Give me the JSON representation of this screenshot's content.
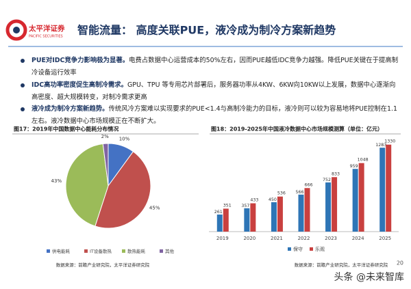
{
  "header": {
    "logo_text": "太平洋证券",
    "logo_subtext": "PACIFIC SECURITIES",
    "title": "智能流量：  高度关联PUE，液冷成为制冷方案新趋势"
  },
  "bullets": [
    {
      "lead": "PUE对IDC竞争力影响极为显著。",
      "text": "电费占数据中心运营成本的50%左右，因而PUE越低IDC竞争力越强。降低PUE关键在于提高制冷设备运行效率"
    },
    {
      "lead": "IDC高功率密度促生高制冷需求。",
      "text": "GPU、TPU 等专用芯片部署后，服务器功率从4KW、6KW向10KW以上发展，数据中心逐渐向高密度、超大规模转变，对制冷需求更高"
    },
    {
      "lead": "液冷成为制冷方案新趋势。",
      "text": "传统风冷方案难以实现要求的PUE<1.4与高制冷能力的目标，液冷则可以较为容易地将PUE控制在1.1左右。液冷数据中心市场规模正在不断扩大。"
    }
  ],
  "chart_data": [
    {
      "type": "pie",
      "title": "图17：2019年中国数据中心能耗分布情况",
      "categories": [
        "供电能耗",
        "IT设备散热",
        "散热能耗",
        "其他"
      ],
      "values": [
        10,
        45,
        43,
        2
      ],
      "value_labels": [
        "10%",
        "45%",
        "43%",
        "2%"
      ],
      "colors": [
        "#4472c4",
        "#c0504d",
        "#9bbb59",
        "#8064a2"
      ],
      "legend": "bottom",
      "source": "数据来源：前瞻产业研究院，太平洋证券研究院"
    },
    {
      "type": "bar",
      "title": "图18：2019-2025年中国液冷数据中心市场规模测算（单位：亿元）",
      "categories": [
        "2019",
        "2020",
        "2021",
        "2022",
        "2023",
        "2024",
        "2025"
      ],
      "series": [
        {
          "name": "保守",
          "color": "#2e75b6",
          "values": [
            261,
            357,
            450,
            566,
            752,
            959,
            1283
          ]
        },
        {
          "name": "乐观",
          "color": "#c9403f",
          "values": [
            351,
            433,
            536,
            666,
            833,
            1048,
            1330
          ]
        }
      ],
      "ylim": [
        0,
        1400
      ],
      "legend": "bottom",
      "source": "数据来源：前瞻产业研究院，太平洋证券研究院"
    }
  ],
  "page_number": "20",
  "watermark": "头条 @未来智库"
}
